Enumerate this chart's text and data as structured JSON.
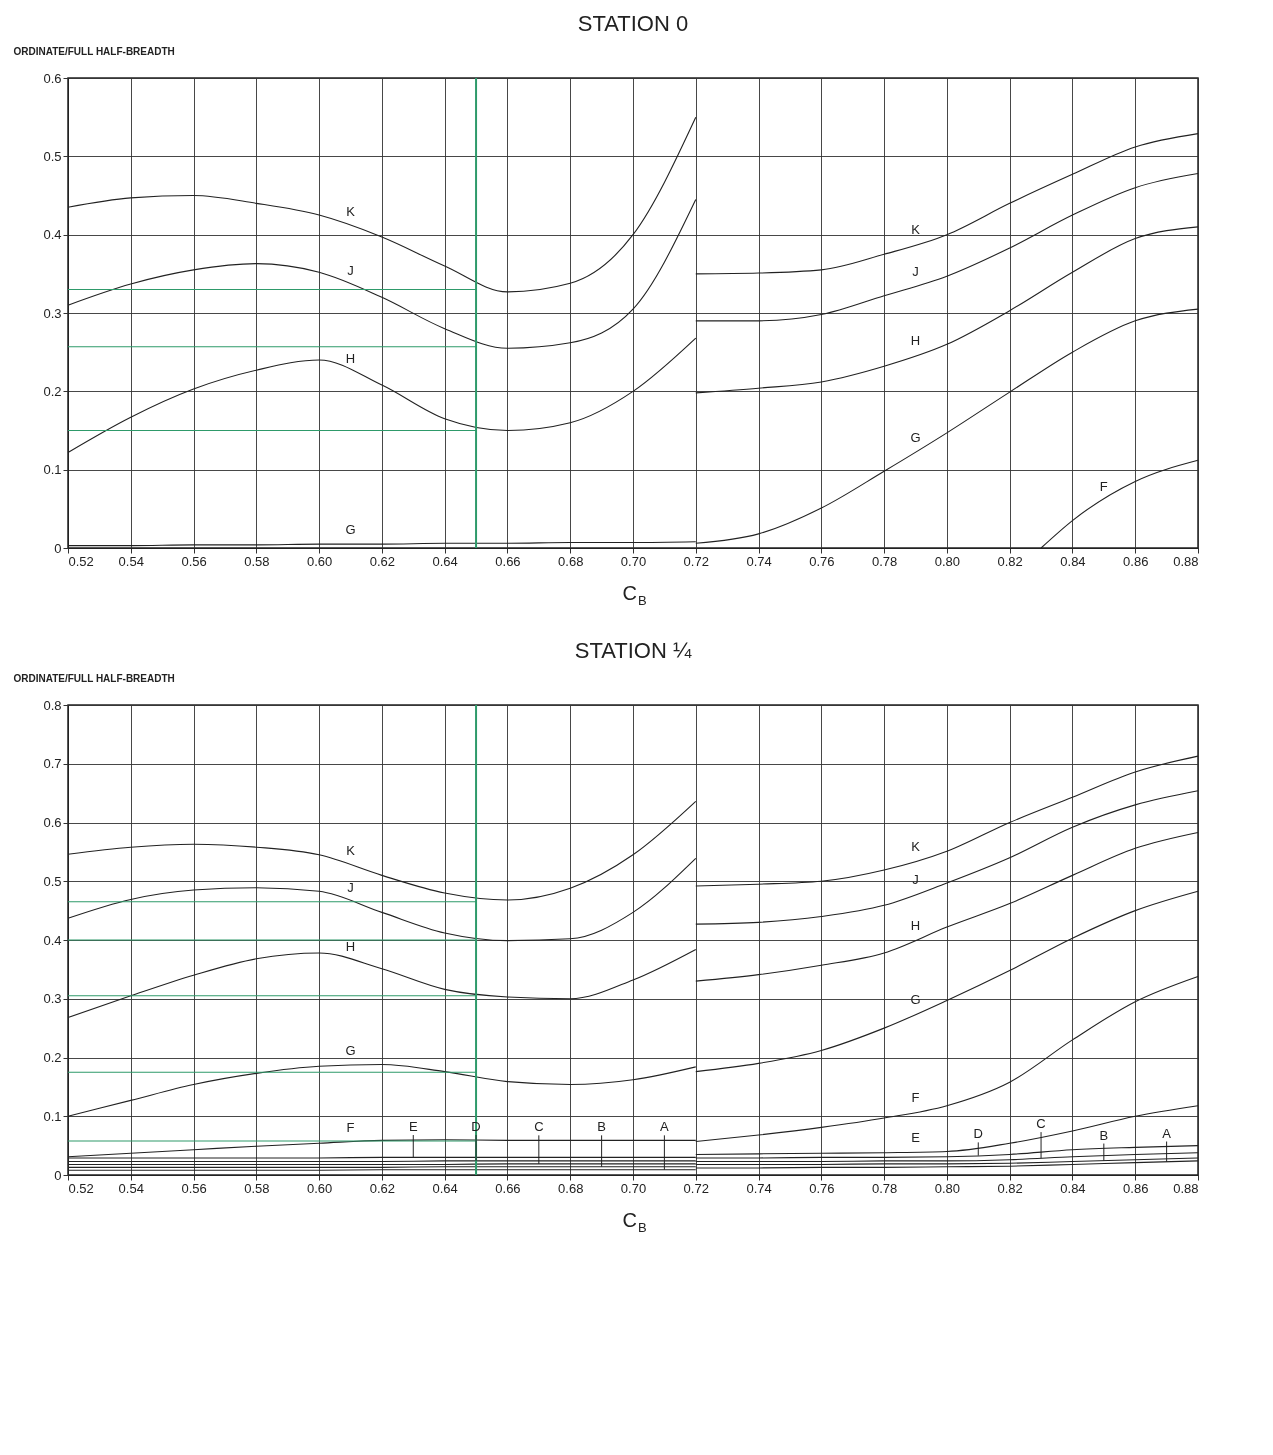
{
  "chart_data": [
    {
      "type": "line",
      "title": "STATION 0",
      "xlabel": "C$_{B}$",
      "ylabel": "ORDINATE/FULL HALF-BREADTH",
      "grid": true,
      "xlim": [
        0.52,
        0.88
      ],
      "xticks": [
        0.52,
        0.54,
        0.56,
        0.58,
        {
          "value": 0.6,
          "label": "0.60"
        },
        0.62,
        0.64,
        0.66,
        0.68,
        {
          "value": 0.7,
          "label": "0.70"
        },
        0.72,
        0.74,
        0.76,
        0.78,
        {
          "value": 0.8,
          "label": "0.80"
        },
        0.82,
        0.84,
        0.86,
        0.88
      ],
      "ylim": [
        0,
        0.6
      ],
      "yticks": [
        0,
        0.1,
        0.2,
        0.3,
        0.4,
        0.5,
        0.6
      ],
      "ref_lines": [
        {
          "axis": "x",
          "value": 0.65,
          "color": "#2e9a6a"
        }
      ],
      "series": [
        {
          "name": "K",
          "color": "#222222",
          "x": [
            0.52,
            0.54,
            0.56,
            0.58,
            0.6,
            0.62,
            0.64,
            0.66,
            0.68,
            0.7,
            0.72
          ],
          "values": [
            0.435,
            0.447,
            0.45,
            0.44,
            0.425,
            0.397,
            0.36,
            0.327,
            0.338,
            0.4,
            0.55
          ]
        },
        {
          "name": "K",
          "color": "#222222",
          "x": [
            0.72,
            0.74,
            0.76,
            0.78,
            0.8,
            0.82,
            0.84,
            0.86,
            0.88
          ],
          "values": [
            0.35,
            0.351,
            0.355,
            0.375,
            0.4,
            0.44,
            0.477,
            0.512,
            0.529
          ]
        },
        {
          "name": "J",
          "color": "#222222",
          "x": [
            0.52,
            0.54,
            0.56,
            0.58,
            0.6,
            0.62,
            0.64,
            0.66,
            0.68,
            0.7,
            0.72
          ],
          "values": [
            0.31,
            0.337,
            0.355,
            0.363,
            0.352,
            0.32,
            0.28,
            0.255,
            0.262,
            0.305,
            0.445
          ]
        },
        {
          "name": "J",
          "color": "#222222",
          "x": [
            0.72,
            0.74,
            0.76,
            0.78,
            0.8,
            0.82,
            0.84,
            0.86,
            0.88
          ],
          "values": [
            0.29,
            0.29,
            0.298,
            0.322,
            0.347,
            0.383,
            0.425,
            0.46,
            0.478
          ]
        },
        {
          "name": "H",
          "color": "#222222",
          "x": [
            0.52,
            0.54,
            0.56,
            0.58,
            0.6,
            0.62,
            0.64,
            0.66,
            0.68,
            0.7,
            0.72
          ],
          "values": [
            0.122,
            0.167,
            0.203,
            0.227,
            0.24,
            0.208,
            0.165,
            0.15,
            0.16,
            0.2,
            0.268
          ]
        },
        {
          "name": "H",
          "color": "#222222",
          "x": [
            0.72,
            0.74,
            0.76,
            0.78,
            0.8,
            0.82,
            0.84,
            0.86,
            0.88
          ],
          "values": [
            0.198,
            0.204,
            0.212,
            0.232,
            0.26,
            0.303,
            0.352,
            0.395,
            0.41
          ]
        },
        {
          "name": "G",
          "color": "#222222",
          "x": [
            0.52,
            0.54,
            0.56,
            0.58,
            0.6,
            0.62,
            0.64,
            0.66,
            0.68,
            0.7,
            0.72
          ],
          "values": [
            0.003,
            0.003,
            0.004,
            0.004,
            0.005,
            0.005,
            0.006,
            0.006,
            0.007,
            0.007,
            0.008
          ]
        },
        {
          "name": "G",
          "color": "#222222",
          "x": [
            0.72,
            0.74,
            0.76,
            0.78,
            0.8,
            0.82,
            0.84,
            0.86,
            0.88
          ],
          "values": [
            0.006,
            0.018,
            0.051,
            0.098,
            0.147,
            0.199,
            0.25,
            0.29,
            0.305
          ]
        },
        {
          "name": "F",
          "color": "#222222",
          "x": [
            0.83,
            0.84,
            0.86,
            0.88
          ],
          "values": [
            0,
            0.035,
            0.085,
            0.112
          ]
        },
        {
          "color": "#2e9a6a",
          "x": [
            0.52,
            0.65
          ],
          "values": [
            0.33,
            0.33
          ]
        },
        {
          "color": "#2e9a6a",
          "x": [
            0.52,
            0.65
          ],
          "values": [
            0.257,
            0.257
          ]
        },
        {
          "color": "#2e9a6a",
          "x": [
            0.52,
            0.65
          ],
          "values": [
            0.15,
            0.15
          ]
        }
      ]
    },
    {
      "type": "line",
      "title": "STATION ¼",
      "xlabel": "C$_{B}$",
      "ylabel": "ORDINATE/FULL HALF-BREADTH",
      "grid": true,
      "xlim": [
        0.52,
        0.88
      ],
      "xticks": [
        0.52,
        0.54,
        0.56,
        0.58,
        {
          "value": 0.6,
          "label": "0.60"
        },
        0.62,
        0.64,
        0.66,
        0.68,
        {
          "value": 0.7,
          "label": "0.70"
        },
        0.72,
        0.74,
        0.76,
        0.78,
        {
          "value": 0.8,
          "label": "0.80"
        },
        0.82,
        0.84,
        0.86,
        0.88
      ],
      "ylim": [
        0,
        0.8
      ],
      "yticks": [
        0,
        0.1,
        0.2,
        0.3,
        0.4,
        0.5,
        0.6,
        0.7,
        0.8
      ],
      "ref_lines": [
        {
          "axis": "x",
          "value": 0.65,
          "color": "#2e9a6a"
        }
      ],
      "series": [
        {
          "name": "K",
          "color": "#222222",
          "x": [
            0.52,
            0.54,
            0.56,
            0.58,
            0.6,
            0.62,
            0.64,
            0.66,
            0.68,
            0.7,
            0.72
          ],
          "values": [
            0.546,
            0.558,
            0.563,
            0.558,
            0.545,
            0.51,
            0.48,
            0.468,
            0.488,
            0.545,
            0.636
          ]
        },
        {
          "name": "K",
          "color": "#222222",
          "x": [
            0.72,
            0.74,
            0.76,
            0.78,
            0.8,
            0.82,
            0.84,
            0.86,
            0.88
          ],
          "values": [
            0.492,
            0.495,
            0.5,
            0.519,
            0.551,
            0.6,
            0.643,
            0.686,
            0.713
          ]
        },
        {
          "name": "J",
          "color": "#222222",
          "x": [
            0.52,
            0.54,
            0.56,
            0.58,
            0.6,
            0.62,
            0.64,
            0.66,
            0.68,
            0.7,
            0.72
          ],
          "values": [
            0.437,
            0.469,
            0.485,
            0.489,
            0.483,
            0.447,
            0.412,
            0.399,
            0.402,
            0.447,
            0.539
          ]
        },
        {
          "name": "J",
          "color": "#222222",
          "x": [
            0.72,
            0.74,
            0.76,
            0.78,
            0.8,
            0.82,
            0.84,
            0.86,
            0.88
          ],
          "values": [
            0.427,
            0.43,
            0.44,
            0.459,
            0.497,
            0.54,
            0.592,
            0.63,
            0.654
          ]
        },
        {
          "name": "H",
          "color": "#222222",
          "x": [
            0.52,
            0.54,
            0.56,
            0.58,
            0.6,
            0.62,
            0.64,
            0.66,
            0.68,
            0.7,
            0.72
          ],
          "values": [
            0.268,
            0.305,
            0.34,
            0.368,
            0.378,
            0.351,
            0.316,
            0.303,
            0.3,
            0.332,
            0.384
          ]
        },
        {
          "name": "H",
          "color": "#222222",
          "x": [
            0.72,
            0.74,
            0.76,
            0.78,
            0.8,
            0.82,
            0.84,
            0.86,
            0.88
          ],
          "values": [
            0.33,
            0.341,
            0.357,
            0.378,
            0.422,
            0.462,
            0.51,
            0.556,
            0.583
          ]
        },
        {
          "name": "G",
          "color": "#222222",
          "x": [
            0.52,
            0.54,
            0.56,
            0.58,
            0.6,
            0.62,
            0.64,
            0.66,
            0.68,
            0.7,
            0.72
          ],
          "values": [
            0.1,
            0.127,
            0.154,
            0.173,
            0.185,
            0.188,
            0.176,
            0.159,
            0.154,
            0.162,
            0.184
          ]
        },
        {
          "name": "G",
          "color": "#222222",
          "x": [
            0.72,
            0.74,
            0.76,
            0.78,
            0.8,
            0.82,
            0.84,
            0.86,
            0.88
          ],
          "values": [
            0.176,
            0.19,
            0.212,
            0.25,
            0.297,
            0.348,
            0.403,
            0.45,
            0.483
          ]
        },
        {
          "name": "F",
          "color": "#222222",
          "x": [
            0.52,
            0.54,
            0.56,
            0.58,
            0.6,
            0.62,
            0.64,
            0.66,
            0.68,
            0.7,
            0.72
          ],
          "values": [
            0.031,
            0.037,
            0.043,
            0.049,
            0.054,
            0.059,
            0.06,
            0.059,
            0.059,
            0.059,
            0.059
          ]
        },
        {
          "name": "F",
          "color": "#222222",
          "x": [
            0.72,
            0.74,
            0.76,
            0.78,
            0.8,
            0.82,
            0.84,
            0.86,
            0.88
          ],
          "values": [
            0.057,
            0.068,
            0.081,
            0.097,
            0.118,
            0.158,
            0.23,
            0.295,
            0.338
          ]
        },
        {
          "name": "E",
          "color": "#222222",
          "x": [
            0.52,
            0.54,
            0.56,
            0.58,
            0.6,
            0.62,
            0.64,
            0.66,
            0.68,
            0.7,
            0.72
          ],
          "values": [
            0.029,
            0.029,
            0.029,
            0.029,
            0.029,
            0.03,
            0.03,
            0.03,
            0.03,
            0.03,
            0.03
          ]
        },
        {
          "name": "E",
          "color": "#222222",
          "x": [
            0.72,
            0.74,
            0.76,
            0.78,
            0.8,
            0.82,
            0.84,
            0.86,
            0.88
          ],
          "values": [
            0.035,
            0.036,
            0.037,
            0.038,
            0.04,
            0.054,
            0.075,
            0.1,
            0.118
          ]
        },
        {
          "name": "D",
          "color": "#222222",
          "x": [
            0.52,
            0.54,
            0.56,
            0.58,
            0.6,
            0.62,
            0.64,
            0.66,
            0.68,
            0.7,
            0.72
          ],
          "values": [
            0.023,
            0.023,
            0.023,
            0.023,
            0.023,
            0.023,
            0.024,
            0.024,
            0.024,
            0.024,
            0.024
          ]
        },
        {
          "name": "D",
          "color": "#222222",
          "x": [
            0.72,
            0.74,
            0.76,
            0.78,
            0.8,
            0.82,
            0.84,
            0.86,
            0.88
          ],
          "values": [
            0.029,
            0.029,
            0.03,
            0.03,
            0.031,
            0.035,
            0.043,
            0.047,
            0.05
          ]
        },
        {
          "name": "C",
          "color": "#222222",
          "x": [
            0.52,
            0.54,
            0.56,
            0.58,
            0.6,
            0.62,
            0.64,
            0.66,
            0.68,
            0.7,
            0.72
          ],
          "values": [
            0.018,
            0.018,
            0.018,
            0.018,
            0.018,
            0.018,
            0.018,
            0.019,
            0.019,
            0.019,
            0.019
          ]
        },
        {
          "name": "C",
          "color": "#222222",
          "x": [
            0.72,
            0.74,
            0.76,
            0.78,
            0.8,
            0.82,
            0.84,
            0.86,
            0.88
          ],
          "values": [
            0.023,
            0.023,
            0.023,
            0.024,
            0.024,
            0.026,
            0.031,
            0.035,
            0.038
          ]
        },
        {
          "name": "B",
          "color": "#222222",
          "x": [
            0.52,
            0.54,
            0.56,
            0.58,
            0.6,
            0.62,
            0.64,
            0.66,
            0.68,
            0.7,
            0.72
          ],
          "values": [
            0.013,
            0.013,
            0.013,
            0.013,
            0.013,
            0.013,
            0.014,
            0.014,
            0.014,
            0.014,
            0.014
          ]
        },
        {
          "name": "B",
          "color": "#222222",
          "x": [
            0.72,
            0.74,
            0.76,
            0.78,
            0.8,
            0.82,
            0.84,
            0.86,
            0.88
          ],
          "values": [
            0.018,
            0.018,
            0.018,
            0.019,
            0.019,
            0.02,
            0.023,
            0.026,
            0.029
          ]
        },
        {
          "name": "A",
          "color": "#222222",
          "x": [
            0.52,
            0.54,
            0.56,
            0.58,
            0.6,
            0.62,
            0.64,
            0.66,
            0.68,
            0.7,
            0.72
          ],
          "values": [
            0.008,
            0.008,
            0.008,
            0.008,
            0.008,
            0.009,
            0.009,
            0.009,
            0.009,
            0.009,
            0.009
          ]
        },
        {
          "name": "A",
          "color": "#222222",
          "x": [
            0.72,
            0.74,
            0.76,
            0.78,
            0.8,
            0.82,
            0.84,
            0.86,
            0.88
          ],
          "values": [
            0.012,
            0.012,
            0.013,
            0.013,
            0.014,
            0.015,
            0.018,
            0.021,
            0.024
          ]
        },
        {
          "color": "#2e9a6a",
          "x": [
            0.52,
            0.65
          ],
          "values": [
            0.465,
            0.465
          ]
        },
        {
          "color": "#2e9a6a",
          "x": [
            0.52,
            0.65
          ],
          "values": [
            0.4,
            0.4
          ]
        },
        {
          "color": "#2e9a6a",
          "x": [
            0.52,
            0.65
          ],
          "values": [
            0.305,
            0.305
          ]
        },
        {
          "color": "#2e9a6a",
          "x": [
            0.52,
            0.65
          ],
          "values": [
            0.175,
            0.175
          ]
        },
        {
          "color": "#2e9a6a",
          "x": [
            0.52,
            0.65
          ],
          "values": [
            0.058,
            0.058
          ]
        }
      ]
    }
  ]
}
